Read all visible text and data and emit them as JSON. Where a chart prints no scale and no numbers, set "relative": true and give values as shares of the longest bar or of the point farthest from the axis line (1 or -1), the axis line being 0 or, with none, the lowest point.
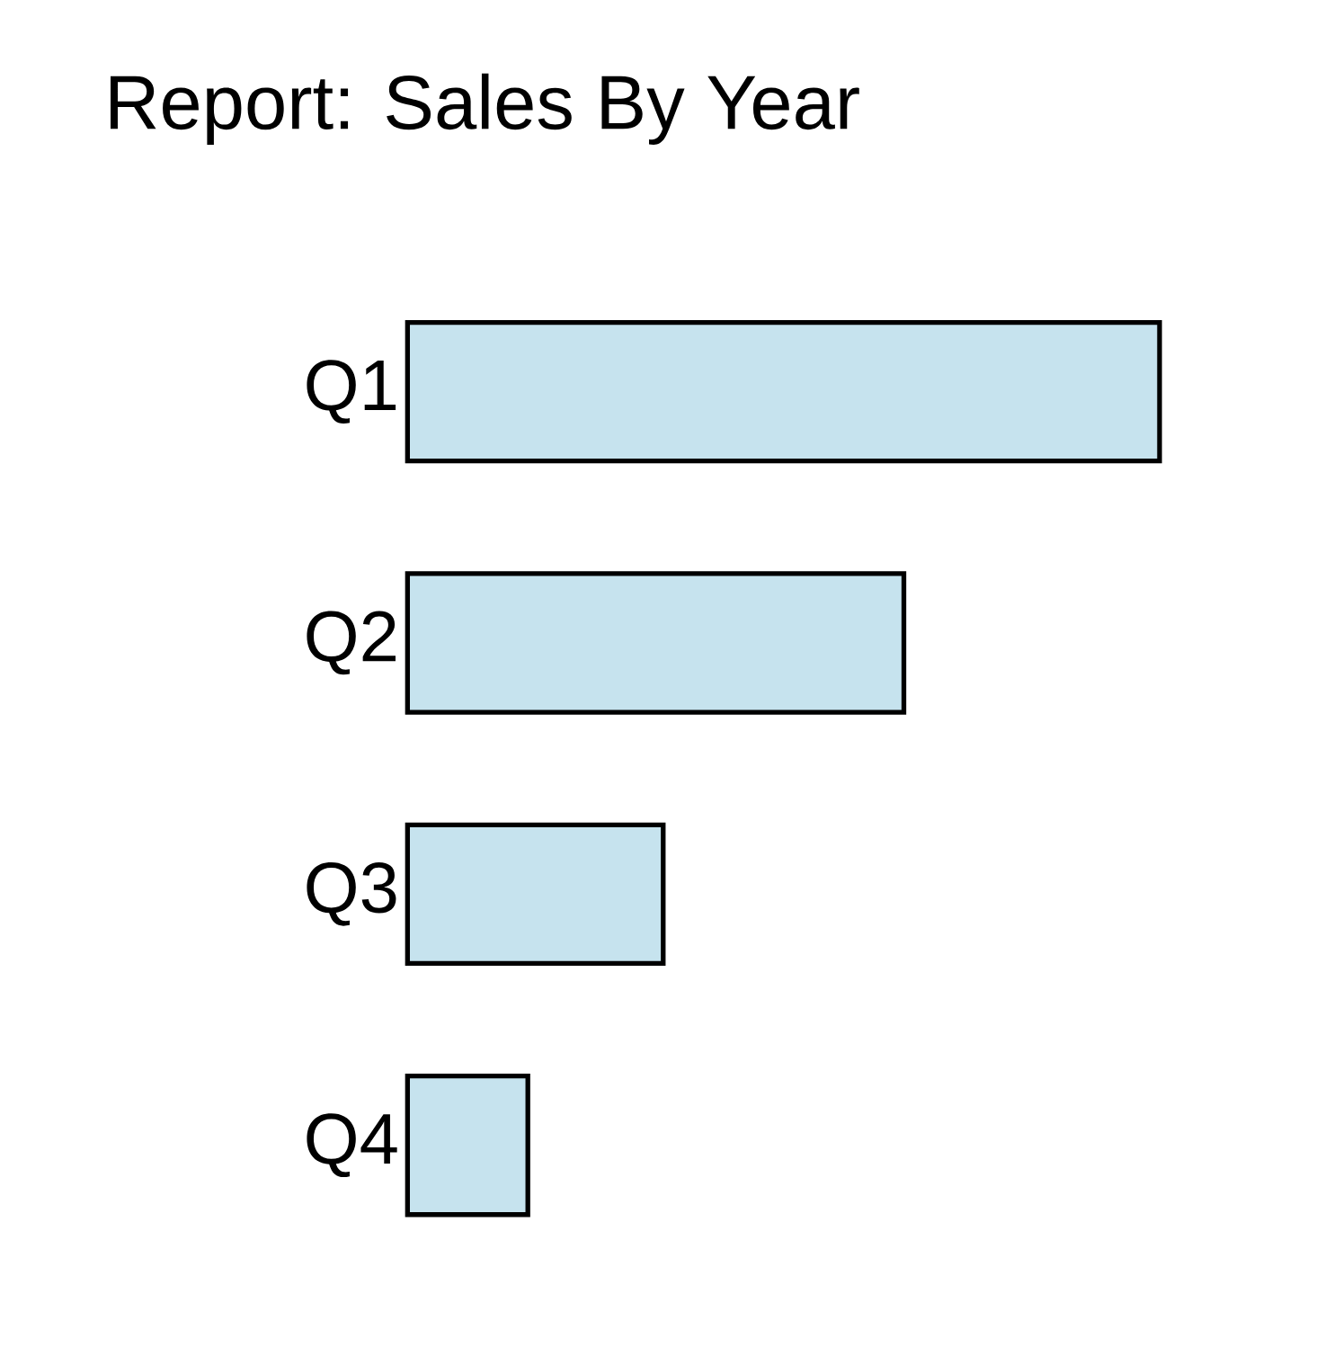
{
  "chart_data": {
    "type": "bar",
    "orientation": "horizontal",
    "title": "Report: Sales By Year",
    "categories": [
      "Q1",
      "Q2",
      "Q3",
      "Q4"
    ],
    "values": [
      1,
      0.66,
      0.34,
      0.16
    ],
    "color": "#c6e3ee",
    "relative": true
  }
}
